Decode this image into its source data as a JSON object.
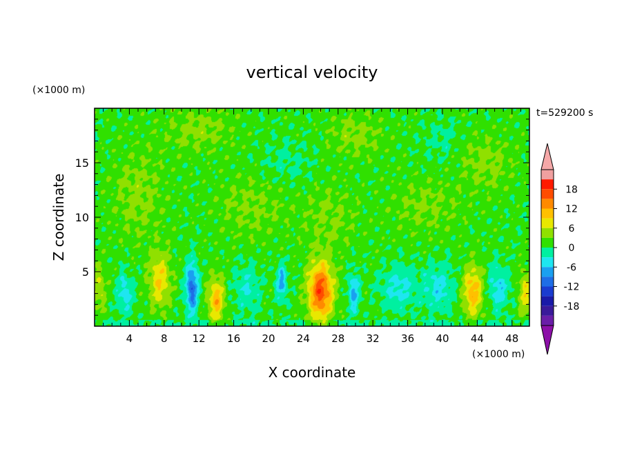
{
  "chart_data": {
    "type": "heatmap",
    "title": "vertical velocity",
    "time_label": "t=529200 s",
    "xlabel": "X coordinate",
    "ylabel": "Z coordinate",
    "x_unit": "(×1000 m)",
    "y_unit": "(×1000 m)",
    "xlim": [
      0,
      50
    ],
    "ylim": [
      0,
      20
    ],
    "x_ticks": [
      4,
      8,
      12,
      16,
      20,
      24,
      28,
      32,
      36,
      40,
      44,
      48
    ],
    "y_ticks": [
      5,
      10,
      15
    ],
    "colorbar": {
      "ticks": [
        18,
        12,
        6,
        0,
        -6,
        -12,
        -18
      ],
      "levels": [
        -21,
        -18,
        -15,
        -12,
        -9,
        -6,
        -3,
        0,
        3,
        6,
        9,
        12,
        15,
        18,
        21
      ],
      "colors": [
        "#6a1ea8",
        "#3a1a9a",
        "#1a1aa8",
        "#1a3cd0",
        "#1e6ee6",
        "#1aa0f0",
        "#1ee6f0",
        "#00f0a0",
        "#30e000",
        "#90e000",
        "#e8e800",
        "#ffc000",
        "#ff8a00",
        "#ff4c00",
        "#ff1a00",
        "#f0a0a0"
      ],
      "extend_low_color": "#8c10a8",
      "extend_high_color": "#f5a8a8"
    },
    "background_value": 1,
    "features": [
      {
        "x": 26.0,
        "z": 3.2,
        "amp": 16,
        "sx": 1.4,
        "sz": 2.6
      },
      {
        "x": 7.5,
        "z": 4.2,
        "amp": 8,
        "sx": 1.2,
        "sz": 2.5
      },
      {
        "x": 14.0,
        "z": 2.4,
        "amp": 10,
        "sx": 0.9,
        "sz": 2.0
      },
      {
        "x": 43.5,
        "z": 3.2,
        "amp": 10,
        "sx": 1.1,
        "sz": 2.3
      },
      {
        "x": 0.5,
        "z": 3.5,
        "amp": 5,
        "sx": 0.8,
        "sz": 2.0
      },
      {
        "x": 49.5,
        "z": 3.0,
        "amp": 7,
        "sx": 0.7,
        "sz": 2.0
      },
      {
        "x": 11.2,
        "z": 3.5,
        "amp": -12,
        "sx": 0.7,
        "sz": 2.3
      },
      {
        "x": 3.5,
        "z": 3.0,
        "amp": -6,
        "sx": 0.9,
        "sz": 1.8
      },
      {
        "x": 21.5,
        "z": 4.0,
        "amp": -8,
        "sx": 0.6,
        "sz": 1.6
      },
      {
        "x": 29.8,
        "z": 3.0,
        "amp": -8,
        "sx": 0.6,
        "sz": 1.8
      },
      {
        "x": 17.5,
        "z": 3.5,
        "amp": -4,
        "sx": 1.5,
        "sz": 2.2
      },
      {
        "x": 35.0,
        "z": 3.5,
        "amp": -5,
        "sx": 2.0,
        "sz": 2.0
      },
      {
        "x": 39.5,
        "z": 3.5,
        "amp": -5,
        "sx": 1.8,
        "sz": 2.2
      },
      {
        "x": 46.5,
        "z": 3.5,
        "amp": -6,
        "sx": 1.1,
        "sz": 2.0
      },
      {
        "x": 5.0,
        "z": 12.0,
        "amp": 3,
        "sx": 3.0,
        "sz": 4.0
      },
      {
        "x": 18.0,
        "z": 11.0,
        "amp": 2.5,
        "sx": 4.0,
        "sz": 3.0
      },
      {
        "x": 27.0,
        "z": 10.0,
        "amp": 2.5,
        "sx": 3.0,
        "sz": 3.0
      },
      {
        "x": 38.0,
        "z": 11.0,
        "amp": 2.5,
        "sx": 4.0,
        "sz": 2.5
      },
      {
        "x": 12.0,
        "z": 18.0,
        "amp": 3,
        "sx": 4.0,
        "sz": 2.0
      },
      {
        "x": 30.0,
        "z": 17.5,
        "amp": 3,
        "sx": 3.0,
        "sz": 2.0
      },
      {
        "x": 45.0,
        "z": 15.0,
        "amp": 3,
        "sx": 3.0,
        "sz": 2.5
      },
      {
        "x": 40.0,
        "z": 17.0,
        "amp": -2,
        "sx": 2.0,
        "sz": 2.0
      },
      {
        "x": 22.0,
        "z": 15.0,
        "amp": -2,
        "sx": 3.0,
        "sz": 2.0
      }
    ]
  }
}
